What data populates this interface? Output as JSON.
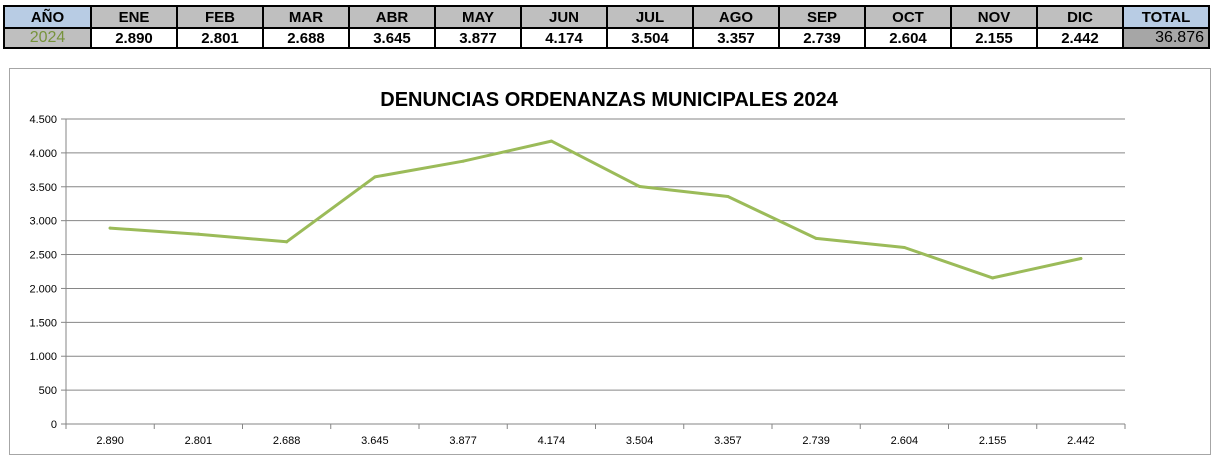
{
  "table": {
    "headers": {
      "year": "AÑO",
      "months": [
        "ENE",
        "FEB",
        "MAR",
        "ABR",
        "MAY",
        "JUN",
        "JUL",
        "AGO",
        "SEP",
        "OCT",
        "NOV",
        "DIC"
      ],
      "total": "TOTAL"
    },
    "row": {
      "year": "2024",
      "values": [
        "2.890",
        "2.801",
        "2.688",
        "3.645",
        "3.877",
        "4.174",
        "3.504",
        "3.357",
        "2.739",
        "2.604",
        "2.155",
        "2.442"
      ],
      "total": "36.876"
    }
  },
  "chart_data": {
    "type": "line",
    "title": "DENUNCIAS ORDENANZAS MUNICIPALES 2024",
    "categories": [
      "2.890",
      "2.801",
      "2.688",
      "3.645",
      "3.877",
      "4.174",
      "3.504",
      "3.357",
      "2.739",
      "2.604",
      "2.155",
      "2.442"
    ],
    "series": [
      {
        "values": [
          2890,
          2801,
          2688,
          3645,
          3877,
          4174,
          3504,
          3357,
          2739,
          2604,
          2155,
          2442
        ]
      }
    ],
    "ylim": [
      0,
      4500
    ],
    "yticks": [
      0,
      500,
      1000,
      1500,
      2000,
      2500,
      3000,
      3500,
      4000,
      4500
    ],
    "ytick_labels": [
      "0",
      "500",
      "1.000",
      "1.500",
      "2.000",
      "2.500",
      "3.000",
      "3.500",
      "4.000",
      "4.500"
    ],
    "grid": true,
    "legend": "none",
    "colors": {
      "line": "#9bbb59",
      "grid": "#868686",
      "axis": "#868686"
    }
  }
}
